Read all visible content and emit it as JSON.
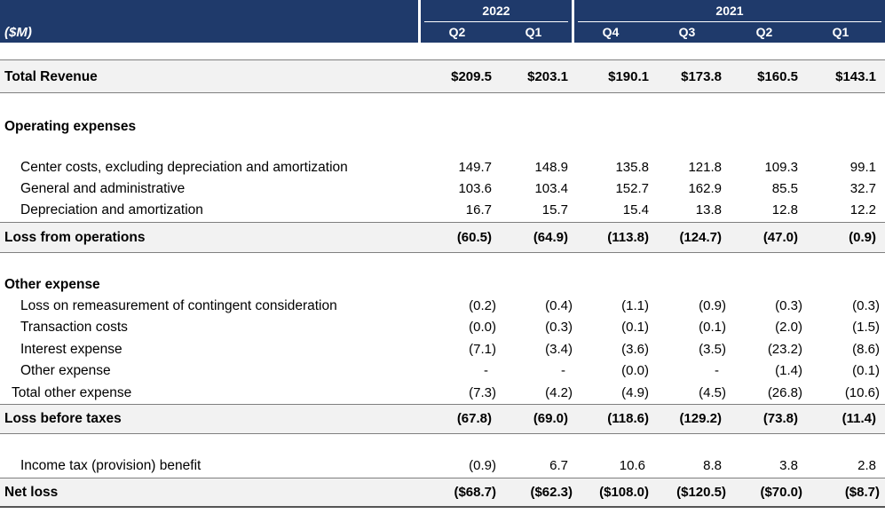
{
  "header": {
    "unit_label": "($M)",
    "years": [
      {
        "label": "2022"
      },
      {
        "label": "2021"
      }
    ],
    "quarters": [
      "Q2",
      "Q1",
      "Q4",
      "Q3",
      "Q2",
      "Q1"
    ]
  },
  "rows": {
    "total_revenue": {
      "label": "Total Revenue",
      "values": [
        "$209.5",
        "$203.1",
        "$190.1",
        "$173.8",
        "$160.5",
        "$143.1"
      ]
    },
    "operating_expenses": {
      "label": "Operating expenses"
    },
    "center_costs": {
      "label": "Center costs, excluding depreciation and amortization",
      "values": [
        "149.7",
        "148.9",
        "135.8",
        "121.8",
        "109.3",
        "99.1"
      ]
    },
    "general_admin": {
      "label": "General and administrative",
      "values": [
        "103.6",
        "103.4",
        "152.7",
        "162.9",
        "85.5",
        "32.7"
      ]
    },
    "depreciation": {
      "label": "Depreciation and amortization",
      "values": [
        "16.7",
        "15.7",
        "15.4",
        "13.8",
        "12.8",
        "12.2"
      ]
    },
    "loss_from_operations": {
      "label": "Loss from operations",
      "values": [
        "(60.5)",
        "(64.9)",
        "(113.8)",
        "(124.7)",
        "(47.0)",
        "(0.9)"
      ]
    },
    "other_expense_header": {
      "label": "Other expense"
    },
    "loss_remeasurement": {
      "label": "Loss on remeasurement of contingent consideration",
      "values": [
        "(0.2)",
        "(0.4)",
        "(1.1)",
        "(0.9)",
        "(0.3)",
        "(0.3)"
      ]
    },
    "transaction_costs": {
      "label": "Transaction costs",
      "values": [
        "(0.0)",
        "(0.3)",
        "(0.1)",
        "(0.1)",
        "(2.0)",
        "(1.5)"
      ]
    },
    "interest_expense": {
      "label": "Interest expense",
      "values": [
        "(7.1)",
        "(3.4)",
        "(3.6)",
        "(3.5)",
        "(23.2)",
        "(8.6)"
      ]
    },
    "other_expense": {
      "label": "Other expense",
      "values": [
        "-",
        "-",
        "(0.0)",
        "-",
        "(1.4)",
        "(0.1)"
      ]
    },
    "total_other_expense": {
      "label": "Total other expense",
      "values": [
        "(7.3)",
        "(4.2)",
        "(4.9)",
        "(4.5)",
        "(26.8)",
        "(10.6)"
      ]
    },
    "loss_before_taxes": {
      "label": "Loss before taxes",
      "values": [
        "(67.8)",
        "(69.0)",
        "(118.6)",
        "(129.2)",
        "(73.8)",
        "(11.4)"
      ]
    },
    "income_tax": {
      "label": "Income tax (provision) benefit",
      "values": [
        "(0.9)",
        "6.7",
        "10.6",
        "8.8",
        "3.8",
        "2.8"
      ]
    },
    "net_loss": {
      "label": "Net loss",
      "values": [
        "($68.7)",
        "($62.3)",
        "($108.0)",
        "($120.5)",
        "($70.0)",
        "($8.7)"
      ]
    }
  }
}
